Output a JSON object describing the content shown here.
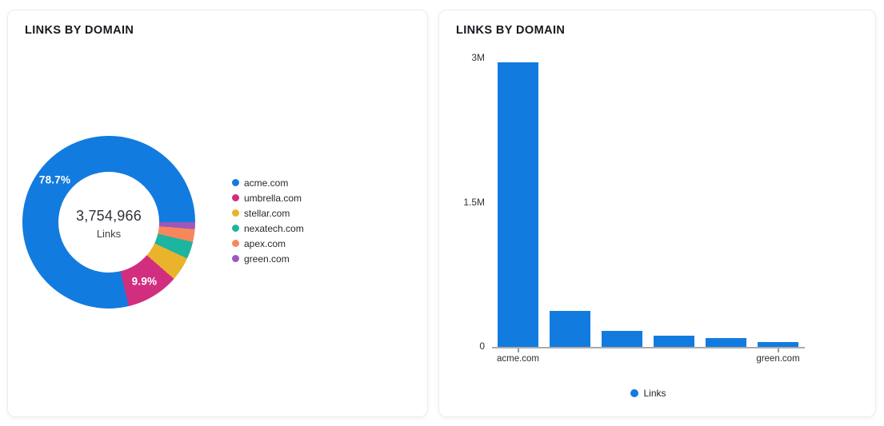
{
  "colors": {
    "blue": "#127BDF",
    "pink": "#D22E80",
    "yellow": "#EAB32C",
    "teal": "#1DB4A0",
    "orange": "#F6875C",
    "purple": "#9D59B9",
    "axis_line": "#ABABAB",
    "title_text": "#17191E"
  },
  "chart_data": [
    {
      "type": "pie",
      "subtype": "donut",
      "title": "LINKS BY DOMAIN",
      "center_value": "3,754,966",
      "center_label": "Links",
      "legend_position": "right",
      "rotation_clockwise_from_top_deg": 90,
      "draw_order": "segments reversed, clockwise starting at 3 o'clock",
      "donut_hole_ratio": 0.58,
      "segments": [
        {
          "label": "acme.com",
          "value": 2955158,
          "pct": 78.7,
          "pct_label": "78.7%",
          "color": "#127BDF"
        },
        {
          "label": "umbrella.com",
          "value": 371742,
          "pct": 9.9,
          "pct_label": "9.9%",
          "color": "#D22E80"
        },
        {
          "label": "stellar.com",
          "value": 168974,
          "pct": 4.5,
          "pct_label": "",
          "color": "#EAB32C"
        },
        {
          "label": "nexatech.com",
          "value": 120159,
          "pct": 3.2,
          "pct_label": "",
          "color": "#1DB4A0"
        },
        {
          "label": "apex.com",
          "value": 90119,
          "pct": 2.4,
          "pct_label": "",
          "color": "#F6875C"
        },
        {
          "label": "green.com",
          "value": 48814,
          "pct": 1.3,
          "pct_label": "",
          "color": "#9D59B9"
        }
      ]
    },
    {
      "type": "bar",
      "title": "LINKS BY DOMAIN",
      "series_name": "Links",
      "bar_color": "#127BDF",
      "categories": [
        "acme.com",
        "umbrella.com",
        "stellar.com",
        "nexatech.com",
        "apex.com",
        "green.com"
      ],
      "values": [
        2955158,
        371742,
        168974,
        120159,
        90119,
        48814
      ],
      "ylim": [
        0,
        3000000
      ],
      "yticks": [
        {
          "value": 3000000,
          "label": "3M"
        },
        {
          "value": 1500000,
          "label": "1.5M"
        },
        {
          "value": 0,
          "label": "0"
        }
      ],
      "xtick_labels_visible": [
        "acme.com",
        "green.com"
      ],
      "legend_position": "bottom",
      "grid": false
    }
  ]
}
